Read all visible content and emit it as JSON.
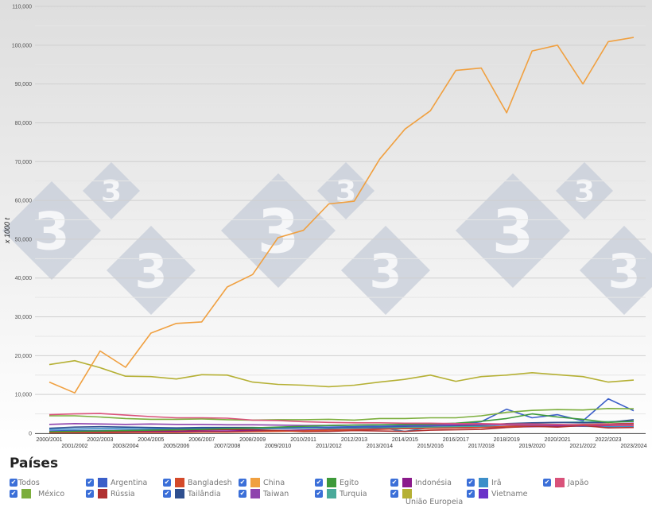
{
  "chart_data": {
    "type": "line",
    "title": "",
    "xlabel": "",
    "ylabel": "x 1000 t",
    "ylim": [
      0,
      110000
    ],
    "yticks": [
      0,
      10000,
      20000,
      30000,
      40000,
      50000,
      60000,
      70000,
      80000,
      90000,
      100000,
      110000
    ],
    "ytick_labels": [
      "0",
      "10,000",
      "20,000",
      "30,000",
      "40,000",
      "50,000",
      "60,000",
      "70,000",
      "80,000",
      "90,000",
      "100,000",
      "110,000"
    ],
    "grid": true,
    "legend_position": "bottom",
    "categories": [
      "2000/2001",
      "2001/2002",
      "2002/2003",
      "2003/2004",
      "2004/2005",
      "2005/2006",
      "2006/2007",
      "2007/2008",
      "2008/2009",
      "2009/2010",
      "2010/2011",
      "2011/2012",
      "2012/2013",
      "2013/2014",
      "2014/2015",
      "2015/2016",
      "2016/2017",
      "2017/2018",
      "2018/2019",
      "2019/2020",
      "2020/2021",
      "2021/2022",
      "2022/2023",
      "2023/2024"
    ],
    "series": [
      {
        "name": "China",
        "color": "#f0a040",
        "values": [
          13200,
          10400,
          21200,
          17000,
          25800,
          28300,
          28700,
          37700,
          40900,
          50400,
          52300,
          59100,
          59800,
          70600,
          78400,
          83100,
          93500,
          94100,
          82600,
          98500,
          100000,
          90000,
          100900,
          102000
        ]
      },
      {
        "name": "União Europeia",
        "color": "#b5b034",
        "values": [
          17700,
          18700,
          16900,
          14700,
          14600,
          14000,
          15100,
          15000,
          13200,
          12600,
          12400,
          12000,
          12400,
          13200,
          13900,
          15000,
          13400,
          14600,
          15000,
          15600,
          15100,
          14600,
          13200,
          13700
        ]
      },
      {
        "name": "Japão",
        "color": "#d9527a",
        "values": [
          4800,
          5000,
          5100,
          4700,
          4300,
          4000,
          4000,
          3900,
          3400,
          3300,
          3000,
          2800,
          2700,
          2700,
          2600,
          2600,
          2500,
          2500,
          2400,
          2400,
          2300,
          2200,
          2100,
          2000
        ]
      },
      {
        "name": "México",
        "color": "#7cae3c",
        "values": [
          4500,
          4500,
          4200,
          3800,
          3600,
          3600,
          3700,
          3500,
          3400,
          3500,
          3500,
          3600,
          3400,
          3800,
          3800,
          4000,
          4000,
          4500,
          5400,
          5900,
          6100,
          6000,
          6400,
          6300
        ]
      },
      {
        "name": "Egito",
        "color": "#3e9a3a",
        "values": [
          400,
          500,
          600,
          700,
          800,
          900,
          1000,
          1200,
          1400,
          1600,
          1800,
          2000,
          2100,
          2200,
          2300,
          2400,
          2600,
          3100,
          3800,
          5000,
          4200,
          3600,
          2800,
          3100
        ]
      },
      {
        "name": "Taiwan",
        "color": "#8e44ad",
        "values": [
          2300,
          2500,
          2400,
          2300,
          2400,
          2300,
          2300,
          2200,
          2200,
          2100,
          2000,
          2000,
          2100,
          2200,
          2200,
          2200,
          2200,
          2200,
          2200,
          2100,
          2100,
          2200,
          2200,
          2200
        ]
      },
      {
        "name": "Argentina",
        "color": "#3b5fc9",
        "values": [
          600,
          700,
          700,
          800,
          900,
          1000,
          1100,
          1200,
          1300,
          1400,
          1500,
          1600,
          1700,
          1800,
          1900,
          2000,
          2100,
          3000,
          6200,
          4000,
          4800,
          3200,
          8900,
          5800
        ]
      },
      {
        "name": "Bangladesh",
        "color": "#d44a2a",
        "values": [
          100,
          100,
          100,
          200,
          200,
          200,
          300,
          300,
          400,
          500,
          600,
          800,
          900,
          1000,
          1200,
          1300,
          1400,
          1500,
          1800,
          2000,
          2100,
          2300,
          2400,
          2500
        ]
      },
      {
        "name": "Rússia",
        "color": "#b03030",
        "values": [
          300,
          400,
          500,
          600,
          700,
          800,
          900,
          1000,
          900,
          700,
          400,
          500,
          700,
          600,
          500,
          800,
          900,
          1000,
          1500,
          1800,
          1600,
          2000,
          1400,
          1500
        ]
      },
      {
        "name": "Tailândia",
        "color": "#2f4f8f",
        "values": [
          1300,
          1600,
          1700,
          1600,
          1500,
          1400,
          1500,
          1500,
          1500,
          1400,
          1500,
          1500,
          1600,
          1700,
          1800,
          1900,
          2000,
          2100,
          2500,
          2700,
          2800,
          2700,
          2800,
          3500
        ]
      },
      {
        "name": "Turquia",
        "color": "#4aaa9a",
        "values": [
          500,
          600,
          700,
          800,
          900,
          1000,
          1000,
          1100,
          1100,
          1200,
          1300,
          1300,
          1400,
          1500,
          1500,
          1600,
          1700,
          1900,
          2300,
          2600,
          2800,
          2900,
          3000,
          3100
        ]
      },
      {
        "name": "Indonésia",
        "color": "#8b1a8b",
        "values": [
          300,
          300,
          400,
          400,
          500,
          500,
          600,
          600,
          700,
          700,
          800,
          900,
          1000,
          1100,
          1200,
          1300,
          1400,
          1500,
          1600,
          1700,
          1800,
          1900,
          2000,
          2100
        ]
      },
      {
        "name": "Irã",
        "color": "#3d8fc9",
        "values": [
          1000,
          1100,
          1200,
          1300,
          1300,
          1300,
          1300,
          1400,
          1400,
          1400,
          1400,
          1500,
          1500,
          1500,
          500,
          1500,
          1600,
          1700,
          1800,
          1800,
          1900,
          1800,
          1700,
          1800
        ]
      },
      {
        "name": "Vietname",
        "color": "#6a32c8",
        "values": [
          100,
          100,
          200,
          200,
          300,
          300,
          400,
          500,
          600,
          700,
          800,
          900,
          1000,
          1200,
          1300,
          1400,
          1500,
          1600,
          1700,
          1900,
          2000,
          2200,
          2400,
          2600
        ]
      }
    ]
  },
  "legend": {
    "title": "Países",
    "all_label": "Todos",
    "items": [
      {
        "label": "Argentina",
        "color": "#3b5fc9",
        "checked": true
      },
      {
        "label": "Bangladesh",
        "color": "#d44a2a",
        "checked": true
      },
      {
        "label": "China",
        "color": "#f0a040",
        "checked": true
      },
      {
        "label": "Egito",
        "color": "#3e9a3a",
        "checked": true
      },
      {
        "label": "Indonésia",
        "color": "#8b1a8b",
        "checked": true
      },
      {
        "label": "Irã",
        "color": "#3d8fc9",
        "checked": true
      },
      {
        "label": "Japão",
        "color": "#d9527a",
        "checked": true
      },
      {
        "label": "México",
        "color": "#7cae3c",
        "checked": true
      },
      {
        "label": "Rússia",
        "color": "#b03030",
        "checked": true
      },
      {
        "label": "Tailândia",
        "color": "#2f4f8f",
        "checked": true
      },
      {
        "label": "Taiwan",
        "color": "#8e44ad",
        "checked": true
      },
      {
        "label": "Turquia",
        "color": "#4aaa9a",
        "checked": true
      },
      {
        "label": "União Europeia",
        "color": "#b5b034",
        "checked": true
      },
      {
        "label": "Vietname",
        "color": "#6a32c8",
        "checked": true
      }
    ]
  },
  "watermark": {
    "glyph": "3",
    "color": "#c5ccd8"
  }
}
